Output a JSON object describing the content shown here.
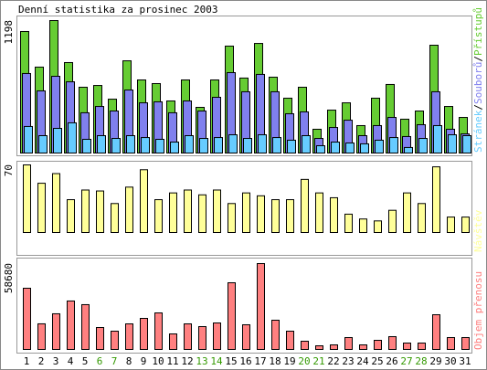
{
  "chart_data": [
    {
      "type": "bar",
      "title": "Denní statistika za prosinec 2003",
      "legend_separator": "/",
      "ylim": [
        0,
        1198
      ],
      "yticks": [
        1198
      ],
      "series": [
        {
          "name": "Přístupů",
          "color": "#66cc33",
          "values": [
            1099,
            777,
            1198,
            818,
            595,
            611,
            487,
            834,
            661,
            628,
            471,
            661,
            413,
            661,
            967,
            678,
            991,
            686,
            496,
            595,
            215,
            388,
            454,
            248,
            496,
            620,
            306,
            380,
            975,
            421,
            322
          ]
        },
        {
          "name": "Souborů",
          "color": "#8080ee",
          "values": [
            719,
            562,
            694,
            644,
            364,
            421,
            380,
            570,
            454,
            463,
            364,
            471,
            380,
            504,
            727,
            554,
            711,
            554,
            355,
            372,
            132,
            231,
            297,
            157,
            248,
            322,
            149,
            256,
            554,
            215,
            173
          ]
        },
        {
          "name": "Stránek",
          "color": "#66ccff",
          "values": [
            240,
            157,
            223,
            273,
            124,
            157,
            132,
            157,
            140,
            124,
            99,
            157,
            132,
            140,
            165,
            132,
            165,
            140,
            116,
            157,
            66,
            99,
            91,
            83,
            116,
            140,
            50,
            132,
            248,
            165,
            157
          ]
        }
      ]
    },
    {
      "type": "bar",
      "ylim": [
        0,
        70
      ],
      "yticks": [
        70
      ],
      "series": [
        {
          "name": "Návštěv",
          "color": "#ffff99",
          "values": [
            70,
            51,
            61,
            34,
            44,
            43,
            30,
            47,
            65,
            34,
            41,
            44,
            39,
            44,
            30,
            41,
            38,
            34,
            34,
            55,
            41,
            36,
            19,
            14,
            12,
            23,
            41,
            30,
            68,
            16,
            16
          ]
        }
      ]
    },
    {
      "type": "bar",
      "ylim": [
        0,
        58680
      ],
      "yticks": [
        58680
      ],
      "categories": [
        "1",
        "2",
        "3",
        "4",
        "5",
        "6",
        "7",
        "8",
        "9",
        "10",
        "11",
        "12",
        "13",
        "14",
        "15",
        "16",
        "17",
        "18",
        "19",
        "20",
        "21",
        "22",
        "23",
        "24",
        "25",
        "26",
        "27",
        "28",
        "29",
        "30",
        "31"
      ],
      "category_colors": [
        "#000",
        "#000",
        "#000",
        "#000",
        "#000",
        "#339900",
        "#339900",
        "#000",
        "#000",
        "#000",
        "#000",
        "#000",
        "#339900",
        "#339900",
        "#000",
        "#000",
        "#000",
        "#000",
        "#000",
        "#339900",
        "#339900",
        "#000",
        "#000",
        "#000",
        "#000",
        "#000",
        "#339900",
        "#339900",
        "#000",
        "#000",
        "#000"
      ],
      "series": [
        {
          "name": "Objem přenosu",
          "color": "#ff8080",
          "values": [
            41822,
            17500,
            24366,
            33106,
            30609,
            14981,
            12485,
            17479,
            21224,
            24970,
            10612,
            17479,
            15606,
            18103,
            45568,
            16855,
            58680,
            19976,
            12485,
            5618,
            2497,
            3121,
            8116,
            3121,
            6242,
            8740,
            4370,
            4370,
            23721,
            8116,
            8116
          ]
        }
      ]
    }
  ]
}
